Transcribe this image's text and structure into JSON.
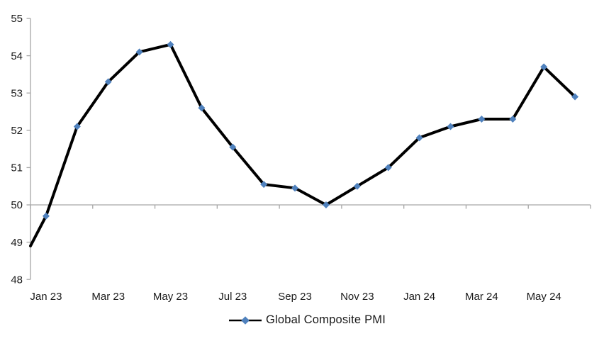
{
  "chart_data": {
    "type": "line",
    "title": "",
    "series": [
      {
        "name": "Global Composite PMI",
        "categories": [
          "Jan 23",
          "Feb 23",
          "Mar 23",
          "Apr 23",
          "May 23",
          "Jun 23",
          "Jul 23",
          "Aug 23",
          "Sep 23",
          "Oct 23",
          "Nov 23",
          "Dec 23",
          "Jan 24",
          "Feb 24",
          "Mar 24",
          "Apr 24",
          "May 24",
          "Jun 24"
        ],
        "values": [
          49.7,
          52.1,
          53.3,
          54.1,
          54.3,
          52.6,
          51.55,
          50.55,
          50.45,
          50.0,
          50.5,
          51.0,
          51.8,
          52.1,
          52.3,
          52.3,
          53.7,
          52.9
        ],
        "line_color": "#000000",
        "marker_shape": "diamond",
        "marker_color": "#4F81BD"
      }
    ],
    "left_edge_entry_value": 48.9,
    "x_tick_labels": [
      "Jan 23",
      "Mar 23",
      "May 23",
      "Jul 23",
      "Sep 23",
      "Nov 23",
      "Jan 24",
      "Mar 24",
      "May 24"
    ],
    "x_label_every_n_categories": 2,
    "y_axis": {
      "min": 48,
      "max": 55,
      "step": 1,
      "tick_labels": [
        "55",
        "54",
        "53",
        "52",
        "51",
        "50",
        "49",
        "48"
      ]
    },
    "x_axis_crosses_at_value": 50,
    "grid": "off",
    "legend": {
      "position": "bottom-center",
      "entries": [
        "Global Composite PMI"
      ]
    },
    "colors": {
      "axis_line": "#a6a6a6",
      "tick_text": "#1a1a1a",
      "series_line": "#000000",
      "marker_fill": "#4F81BD"
    }
  }
}
